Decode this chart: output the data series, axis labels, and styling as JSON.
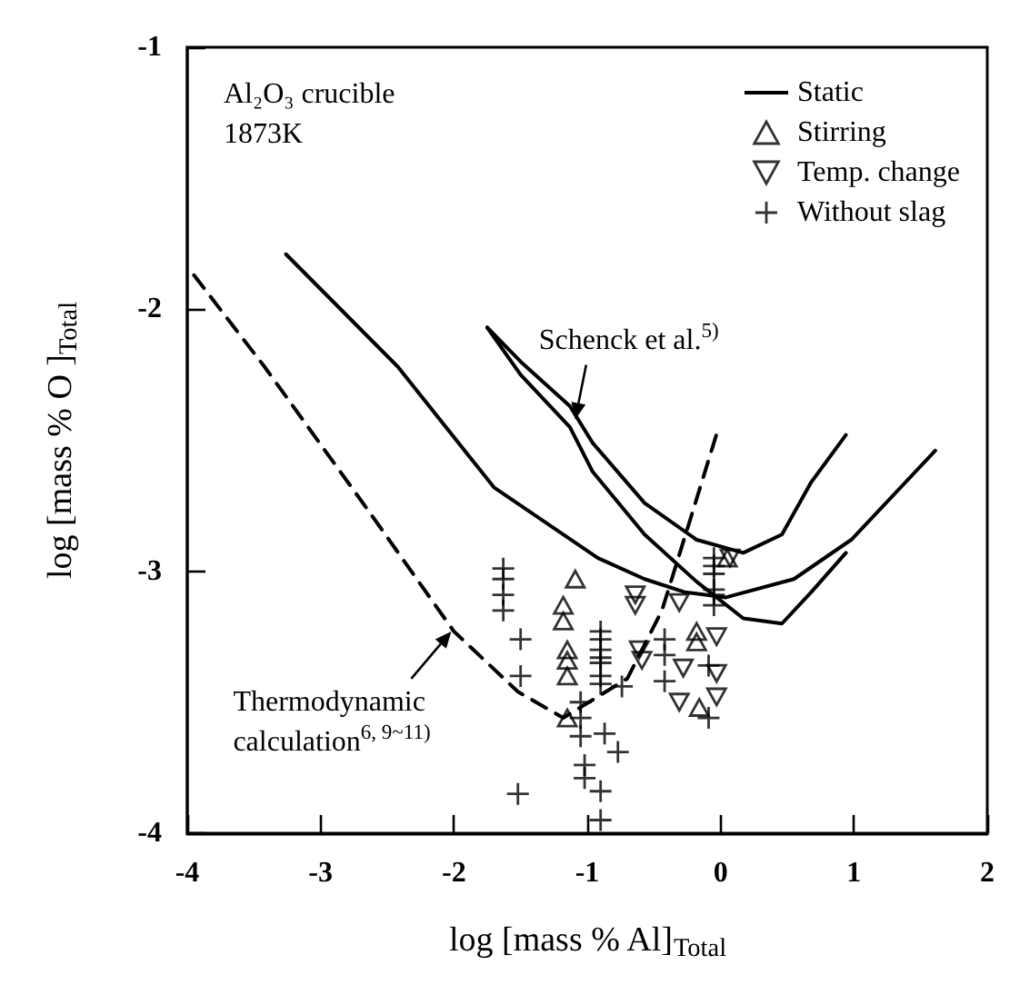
{
  "chart_data": {
    "type": "scatter",
    "xlabel": "log [mass % Al]$_{Total}$",
    "ylabel": "log [mass % O ]$_{Total}$",
    "xlim": [
      -4,
      2
    ],
    "xticks": [
      -4,
      -3,
      -2,
      -1,
      0,
      1,
      2
    ],
    "ylim": [
      -4,
      -1
    ],
    "yticks": [
      -4,
      -3,
      -2,
      -1
    ],
    "grid": false,
    "legend": "top right",
    "annotations": [
      "Al₂O₃ crucible",
      "1873K",
      {
        "text": "Schenck et al.$^{5)}$",
        "x": -1.09,
        "y": -2.42
      },
      {
        "text": "Thermodynamic\ncalculation$^{6, 9~11)}$",
        "x": -2.02,
        "y": -3.23
      }
    ],
    "series": [
      {
        "name": "Static",
        "type": "line",
        "color": "#000000",
        "line_style": "solid",
        "marker": "none",
        "x": [
          -3.26,
          -2.42,
          -1.7,
          -0.92,
          -0.57,
          -0.27,
          0.04,
          0.55,
          0.98,
          1.61
        ],
        "values": [
          -1.79,
          -2.22,
          -2.68,
          -2.95,
          -3.03,
          -3.08,
          -3.1,
          -3.03,
          -2.88,
          -2.54
        ]
      },
      {
        "type": "line",
        "color": "#000000",
        "line_style": "dashed",
        "marker": "none",
        "x": [
          -3.95,
          -3.42,
          -2.64,
          -2.0,
          -1.52,
          -1.18,
          -0.7,
          -0.44,
          -0.22,
          -0.02
        ],
        "values": [
          -1.87,
          -2.22,
          -2.77,
          -3.23,
          -3.46,
          -3.56,
          -3.41,
          -3.15,
          -2.79,
          -2.46
        ]
      },
      {
        "type": "line",
        "color": "#000000",
        "line_style": "solid",
        "marker": "none",
        "x": [
          -1.75,
          -1.5,
          -1.13,
          -0.96,
          -0.57,
          -0.18,
          0.17,
          0.46,
          0.68,
          0.94
        ],
        "values": [
          -2.07,
          -2.2,
          -2.37,
          -2.51,
          -2.74,
          -2.88,
          -2.93,
          -2.86,
          -2.66,
          -2.48
        ]
      },
      {
        "type": "line",
        "color": "#000000",
        "line_style": "solid",
        "marker": "none",
        "x": [
          -1.75,
          -1.5,
          -1.13,
          -0.96,
          -0.57,
          -0.18,
          0.17,
          0.46,
          0.68,
          0.94
        ],
        "values": [
          -2.07,
          -2.25,
          -2.45,
          -2.62,
          -2.86,
          -3.04,
          -3.18,
          -3.2,
          -3.08,
          -2.93
        ]
      },
      {
        "name": "Stirring",
        "color": "#000000",
        "marker": "triangle",
        "x": [
          -1.09,
          -1.18,
          -1.18,
          -1.15,
          -1.15,
          -1.15,
          -1.15,
          -0.18,
          -0.18,
          -0.16,
          0.05
        ],
        "values": [
          -3.03,
          -3.13,
          -3.19,
          -3.3,
          -3.34,
          -3.4,
          -3.56,
          -3.23,
          -3.27,
          -3.52,
          -2.95
        ]
      },
      {
        "name": "Temp. change",
        "color": "#000000",
        "marker": "triangle-down",
        "x": [
          -0.64,
          -0.64,
          -0.61,
          -0.59,
          -0.31,
          -0.28,
          -0.03,
          -0.03,
          -0.03,
          -0.31,
          0.07
        ],
        "values": [
          -3.09,
          -3.13,
          -3.3,
          -3.34,
          -3.12,
          -3.37,
          -3.25,
          -3.39,
          -3.48,
          -3.5,
          -2.95
        ]
      },
      {
        "name": "Without slag",
        "color": "#000000",
        "marker": "cross",
        "x": [
          -1.63,
          -1.63,
          -1.63,
          -1.63,
          -1.5,
          -1.5,
          -1.52,
          -0.9,
          -0.9,
          -0.9,
          -0.9,
          -0.9,
          -0.9,
          -0.9,
          -0.74,
          -1.05,
          -1.05,
          -1.05,
          -0.87,
          -0.77,
          -1.02,
          -1.02,
          -0.9,
          -0.9,
          -0.05,
          -0.05,
          -0.05,
          -0.05,
          -0.05,
          -0.05,
          -0.42,
          -0.42,
          -0.42,
          -0.09,
          -0.09
        ],
        "values": [
          -2.99,
          -3.03,
          -3.09,
          -3.15,
          -3.26,
          -3.4,
          -3.85,
          -3.23,
          -3.26,
          -3.3,
          -3.33,
          -3.35,
          -3.4,
          -3.43,
          -3.44,
          -3.5,
          -3.56,
          -3.63,
          -3.62,
          -3.69,
          -3.74,
          -3.79,
          -3.84,
          -3.95,
          -2.95,
          -2.98,
          -3.01,
          -3.07,
          -3.09,
          -3.13,
          -3.26,
          -3.32,
          -3.42,
          -3.36,
          -3.56
        ]
      }
    ]
  }
}
